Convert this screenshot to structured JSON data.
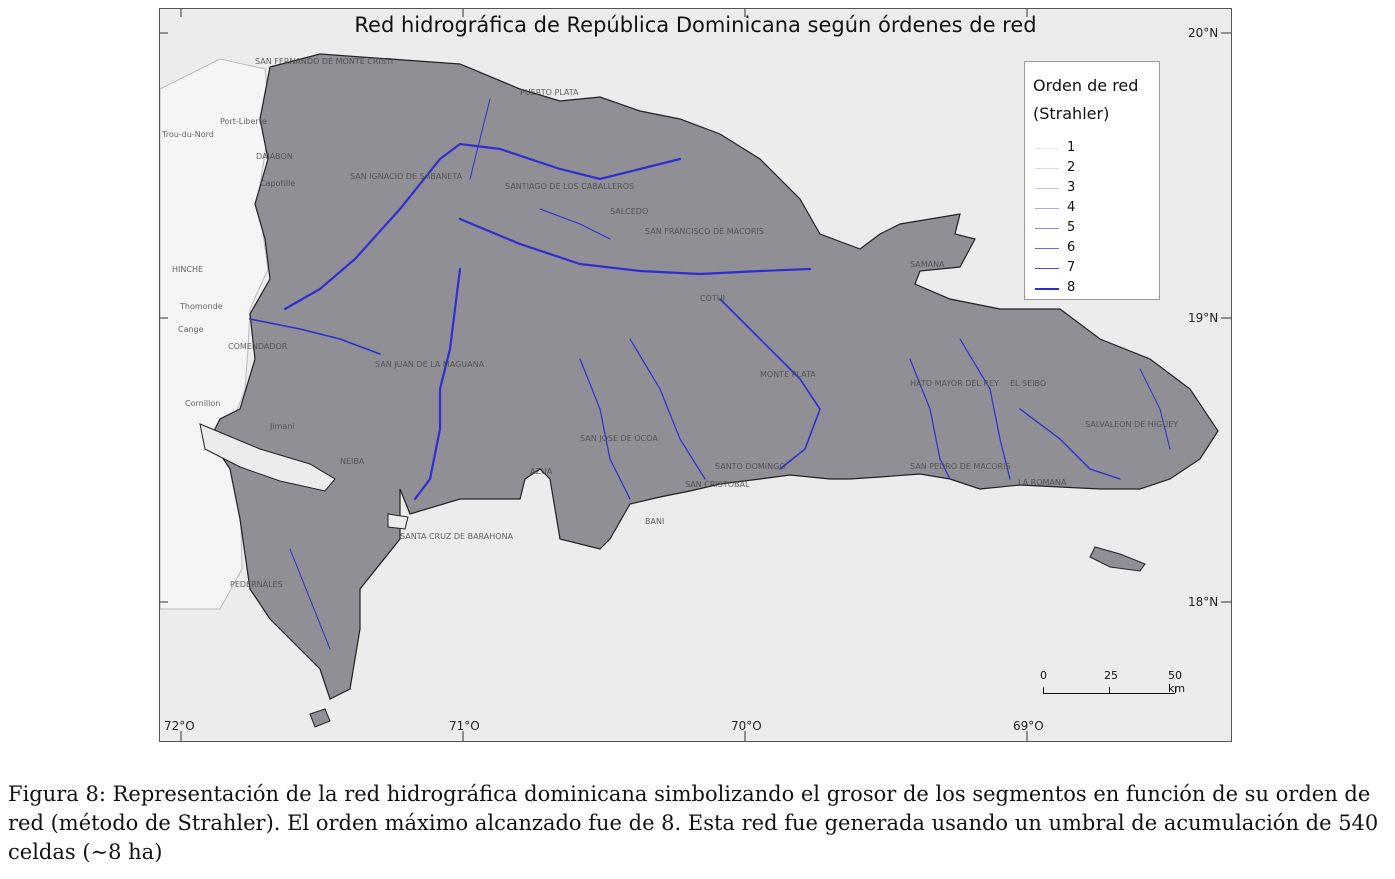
{
  "map": {
    "title": "Red hidrográfica de República Dominicana según órdenes de red",
    "legend": {
      "title_line1": "Orden de red",
      "title_line2": "(Strahler)",
      "items": [
        {
          "label": "1",
          "color": "#e8e8f4"
        },
        {
          "label": "2",
          "color": "#d6d6ee"
        },
        {
          "label": "3",
          "color": "#c2c2ea"
        },
        {
          "label": "4",
          "color": "#a8a8e6"
        },
        {
          "label": "5",
          "color": "#8a8ae2"
        },
        {
          "label": "6",
          "color": "#6a6adc"
        },
        {
          "label": "7",
          "color": "#4b4bd6"
        },
        {
          "label": "8",
          "color": "#2f2fcf"
        }
      ]
    },
    "lat_labels": [
      "20°N",
      "19°N",
      "18°N"
    ],
    "lon_labels": [
      "72°O",
      "71°O",
      "70°O",
      "69°O"
    ],
    "scale": {
      "ticks": [
        "0",
        "25",
        "50 km"
      ]
    },
    "places": [
      "SAN FERNANDO DE MONTE CRISTI",
      "PUERTO PLATA",
      "DAJABON",
      "SANTIAGO DE LOS CABALLEROS",
      "SAN IGNACIO DE SABANETA",
      "SALCEDO",
      "SAN FRANCISCO DE MACORIS",
      "SAMANA",
      "COTUI",
      "MONTE PLATA",
      "HATO MAYOR DEL REY",
      "EL SEIBO",
      "SALVALEON DE HIGUEY",
      "SANTO DOMINGO",
      "SAN PEDRO DE MACORIS",
      "LA ROMANA",
      "SAN CRISTOBAL",
      "BANI",
      "AZUA",
      "SAN JOSE DE OCOA",
      "SAN JUAN DE LA MAGUANA",
      "COMENDADOR",
      "NEIBA",
      "SANTA CRUZ DE BARAHONA",
      "PEDERNALES",
      "Trou-du-Nord",
      "HINCHE",
      "Thomonde",
      "Cange",
      "Cornillon",
      "Port-Liberte",
      "Capotille",
      "Jimani"
    ],
    "colors": {
      "land": "#8f8f95",
      "haiti": "#f5f5f5",
      "sea": "#ececec",
      "river": "#2f2fcf"
    }
  },
  "caption": "Figura 8: Representación de la red hidrográfica dominicana simbolizando el grosor de los segmentos en función de su orden de red (método de Strahler). El orden máximo alcanzado fue de 8. Esta red fue generada usando un umbral de acumulación de 540 celdas (∼8 ha)"
}
